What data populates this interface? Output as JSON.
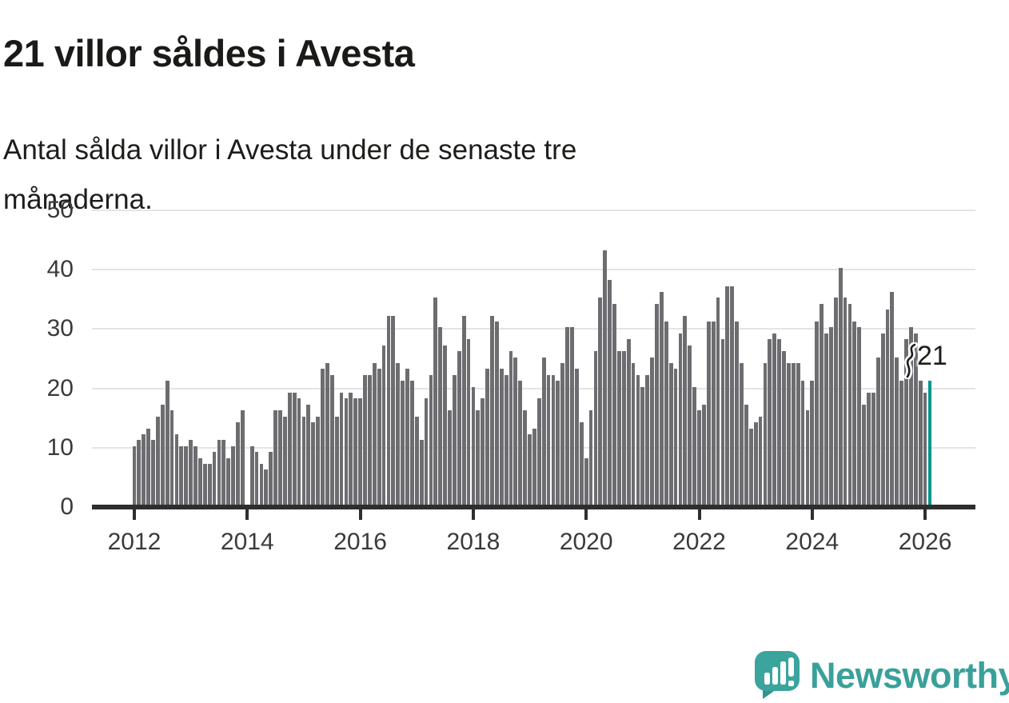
{
  "header": {
    "title": "21 villor såldes i Avesta",
    "subtitle_line1": "Antal sålda villor i Avesta under de senaste tre",
    "subtitle_line2": "månaderna."
  },
  "chart_data": {
    "type": "bar",
    "title": "21 villor såldes i Avesta",
    "subtitle": "Antal sålda villor i Avesta under de senaste tre månaderna.",
    "x_monthly_from": "2012-01",
    "x_monthly_to": "2026-02",
    "values": [
      10,
      11,
      12,
      13,
      11,
      15,
      17,
      21,
      16,
      12,
      10,
      10,
      11,
      10,
      8,
      7,
      7,
      9,
      11,
      11,
      8,
      10,
      14,
      16,
      0,
      10,
      9,
      7,
      6,
      9,
      16,
      16,
      15,
      19,
      19,
      18,
      15,
      17,
      14,
      15,
      23,
      24,
      22,
      15,
      19,
      18,
      19,
      18,
      18,
      22,
      22,
      24,
      23,
      27,
      32,
      32,
      24,
      21,
      23,
      21,
      15,
      11,
      18,
      22,
      35,
      30,
      27,
      16,
      22,
      26,
      32,
      28,
      20,
      16,
      18,
      23,
      32,
      31,
      23,
      22,
      26,
      25,
      21,
      16,
      12,
      13,
      18,
      25,
      22,
      22,
      21,
      24,
      30,
      30,
      23,
      14,
      8,
      16,
      26,
      35,
      43,
      38,
      34,
      26,
      26,
      28,
      24,
      22,
      20,
      22,
      25,
      34,
      36,
      31,
      24,
      23,
      29,
      32,
      27,
      20,
      16,
      17,
      31,
      31,
      35,
      28,
      37,
      37,
      31,
      24,
      17,
      13,
      14,
      15,
      24,
      28,
      29,
      28,
      26,
      24,
      24,
      24,
      21,
      16,
      21,
      31,
      34,
      29,
      30,
      35,
      40,
      35,
      34,
      31,
      30,
      17,
      19,
      19,
      25,
      29,
      33,
      36,
      25,
      21,
      28,
      30,
      29,
      21,
      19,
      21
    ],
    "highlight_index": 169,
    "highlight_value_label": "21",
    "yticks": [
      0,
      10,
      20,
      30,
      40,
      50
    ],
    "ylim": [
      0,
      50
    ],
    "xticks": [
      2012,
      2014,
      2016,
      2018,
      2020,
      2022,
      2024,
      2026
    ],
    "grid": true,
    "legend": "none",
    "bar_color": "#6d6d71",
    "highlight_color": "#00968b",
    "gridline_color": "#e4e4e4",
    "axis_color": "#2e2e2e"
  },
  "annotation": {
    "label": "21"
  },
  "footer": {
    "brand": "Newsworthy"
  }
}
